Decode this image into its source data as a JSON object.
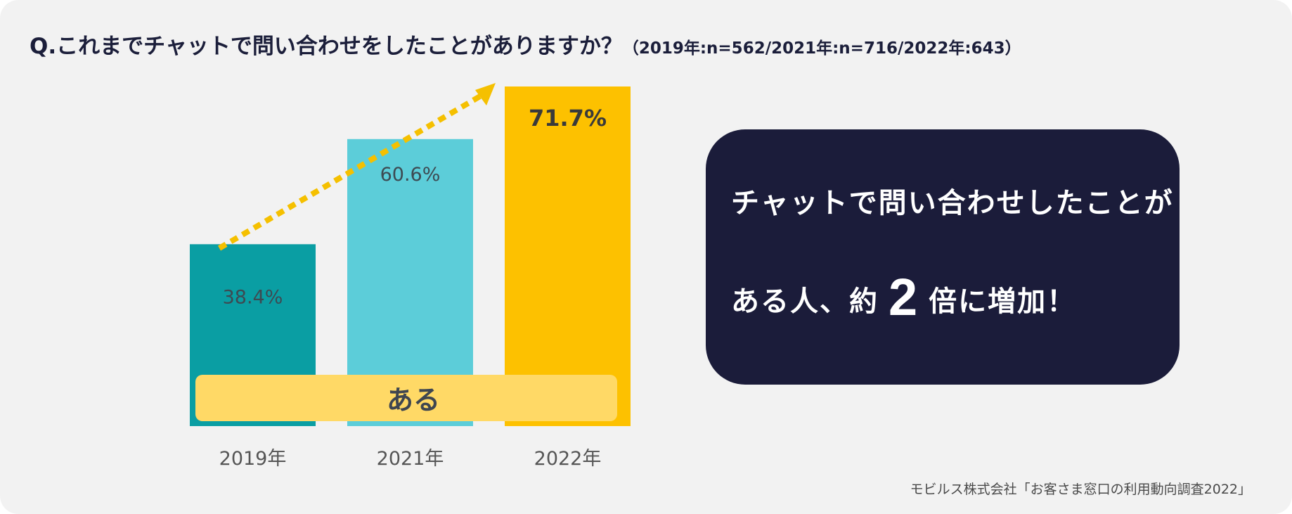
{
  "question": {
    "main": "Q.これまでチャットで問い合わせをしたことがありますか？",
    "sub": "（2019年:n=562/2021年:n=716/2022年:643）"
  },
  "chart_data": {
    "type": "bar",
    "categories": [
      "2019年",
      "2021年",
      "2022年"
    ],
    "series": [
      {
        "values": [
          38.4,
          60.6,
          71.7
        ],
        "data_labels": [
          "38.4%",
          "60.6%",
          "71.7%"
        ],
        "colors": [
          "#0a9ea3",
          "#5ccdd9",
          "#fdc100"
        ]
      }
    ],
    "ylim": [
      0,
      71.7
    ],
    "band_label": "ある",
    "trend_arrow": true,
    "grid": false
  },
  "colors": {
    "background": "#f2f2f2",
    "title_text": "#1b1e3a",
    "panel_bg": "#1b1c3a",
    "band": "#ffd966",
    "arrow": "#f5c000",
    "label_text": "#444444"
  },
  "callout": {
    "line1": "チャットで問い合わせしたことが",
    "line2_prefix": "ある人、約",
    "line2_number": "2",
    "line2_suffix": "倍に増加！"
  },
  "source": "モビルス株式会社「お客さま窓口の利用動向調査2022」"
}
